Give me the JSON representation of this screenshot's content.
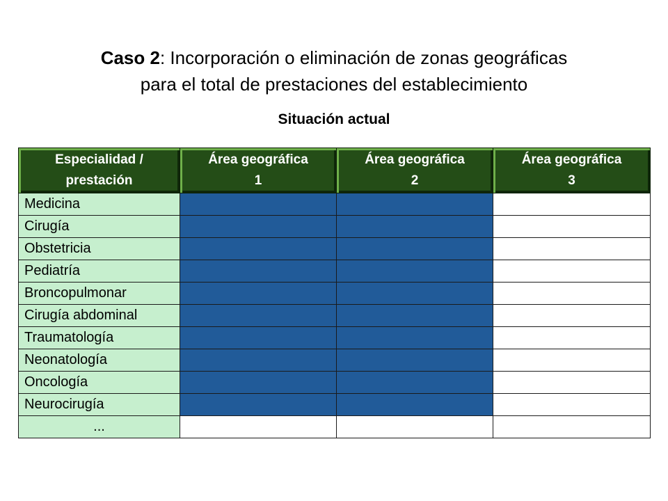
{
  "title": {
    "bold_part": "Caso 2",
    "rest_line1": ": Incorporación o eliminación de zonas geográficas",
    "line2": "para el total de prestaciones del establecimiento"
  },
  "subtitle": "Situación actual",
  "table": {
    "headers": [
      {
        "line1": "Especialidad /",
        "line2": "prestación"
      },
      {
        "line1": "Área geográfica",
        "line2": "1"
      },
      {
        "line1": "Área geográfica",
        "line2": "2"
      },
      {
        "line1": "Área geográfica",
        "line2": "3"
      }
    ],
    "rows": [
      {
        "label": "Medicina",
        "areas": [
          true,
          true,
          false
        ]
      },
      {
        "label": "Cirugía",
        "areas": [
          true,
          true,
          false
        ]
      },
      {
        "label": "Obstetricia",
        "areas": [
          true,
          true,
          false
        ]
      },
      {
        "label": "Pediatría",
        "areas": [
          true,
          true,
          false
        ]
      },
      {
        "label": "Broncopulmonar",
        "areas": [
          true,
          true,
          false
        ]
      },
      {
        "label": "Cirugía abdominal",
        "areas": [
          true,
          true,
          false
        ]
      },
      {
        "label": "Traumatología",
        "areas": [
          true,
          true,
          false
        ]
      },
      {
        "label": "Neonatología",
        "areas": [
          true,
          true,
          false
        ]
      },
      {
        "label": "Oncología",
        "areas": [
          true,
          true,
          false
        ]
      },
      {
        "label": "Neurocirugía",
        "areas": [
          true,
          true,
          false
        ]
      },
      {
        "label": "...",
        "areas": [
          false,
          false,
          false
        ]
      }
    ]
  },
  "colors": {
    "header_bg": "#244d17",
    "label_bg": "#c6efce",
    "assigned_fill": "#215b99",
    "empty_fill": "#ffffff"
  }
}
